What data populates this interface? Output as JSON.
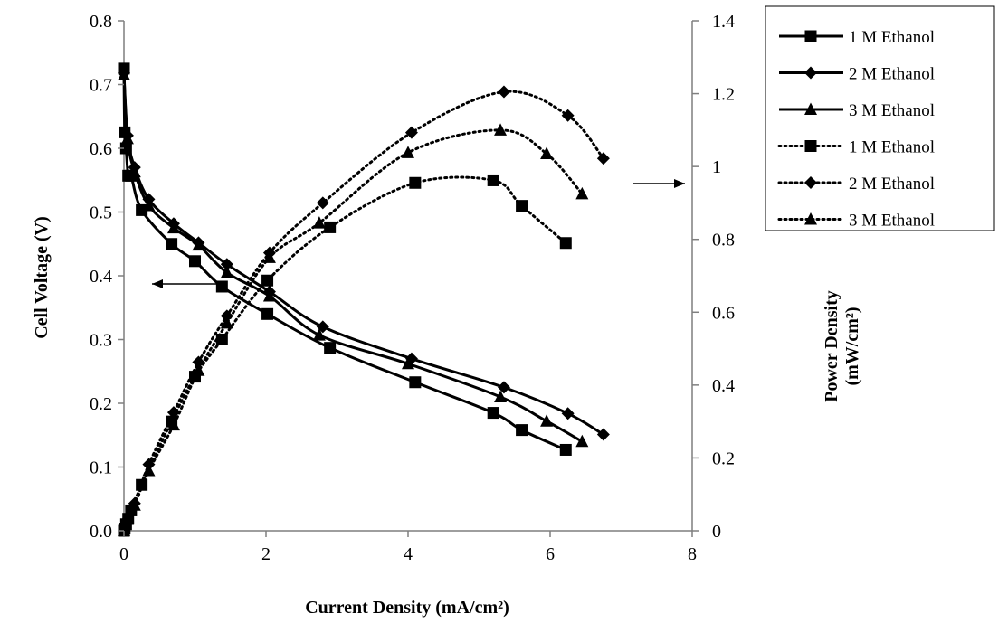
{
  "chart_data": {
    "type": "line",
    "xlabel": "Current Density (mA/cm²)",
    "ylabel": "Cell Voltage (V)",
    "y2label_line1": "Power Density",
    "y2label_line2": "(mW/cm²)",
    "xlim": [
      0,
      8
    ],
    "ylim": [
      0,
      0.8
    ],
    "y2lim": [
      0,
      1.4
    ],
    "xticks": [
      "0",
      "2",
      "4",
      "6",
      "8"
    ],
    "yticks": [
      "0.0",
      "0.1",
      "0.2",
      "0.3",
      "0.4",
      "0.5",
      "0.6",
      "0.7",
      "0.8"
    ],
    "y2ticks": [
      "0",
      "0.2",
      "0.4",
      "0.6",
      "0.8",
      "1",
      "1.2",
      "1.4"
    ],
    "grid": false,
    "legend_position": "top-right",
    "annotations": [
      {
        "label": "arrow-left",
        "points_to": "left-axis"
      },
      {
        "label": "arrow-right",
        "points_to": "right-axis"
      }
    ],
    "series": [
      {
        "name": "1 M Ethanol",
        "axis": "left",
        "style": "solid",
        "marker": "square",
        "x": [
          0.0,
          0.01,
          0.03,
          0.06,
          0.1,
          0.25,
          0.67,
          1.0,
          1.38,
          2.02,
          2.9,
          4.1,
          5.2,
          5.6,
          6.22
        ],
        "y": [
          0.725,
          0.625,
          0.6,
          0.557,
          0.557,
          0.503,
          0.45,
          0.423,
          0.383,
          0.34,
          0.287,
          0.233,
          0.185,
          0.158,
          0.127
        ]
      },
      {
        "name": "2 M Ethanol",
        "axis": "left",
        "style": "solid",
        "marker": "diamond",
        "x": [
          0.0,
          0.05,
          0.15,
          0.35,
          0.7,
          1.05,
          1.45,
          2.05,
          2.8,
          4.05,
          5.35,
          6.25,
          6.75
        ],
        "y": [
          0.718,
          0.62,
          0.57,
          0.52,
          0.482,
          0.452,
          0.418,
          0.375,
          0.32,
          0.27,
          0.225,
          0.184,
          0.151
        ]
      },
      {
        "name": "3 M Ethanol",
        "axis": "left",
        "style": "solid",
        "marker": "triangle",
        "x": [
          0.0,
          0.05,
          0.15,
          0.35,
          0.7,
          1.05,
          1.45,
          2.05,
          2.75,
          4.0,
          5.3,
          5.95,
          6.45
        ],
        "y": [
          0.715,
          0.615,
          0.563,
          0.51,
          0.475,
          0.448,
          0.405,
          0.368,
          0.307,
          0.262,
          0.21,
          0.172,
          0.14
        ]
      },
      {
        "name": "1 M Ethanol",
        "axis": "right",
        "style": "dotted",
        "marker": "square",
        "x": [
          0.0,
          0.01,
          0.03,
          0.06,
          0.1,
          0.25,
          0.67,
          1.0,
          1.38,
          2.02,
          2.9,
          4.1,
          5.2,
          5.6,
          6.22
        ],
        "y": [
          0.0,
          0.006,
          0.018,
          0.033,
          0.056,
          0.126,
          0.3,
          0.423,
          0.525,
          0.687,
          0.833,
          0.955,
          0.962,
          0.892,
          0.79
        ]
      },
      {
        "name": "2 M Ethanol",
        "axis": "right",
        "style": "dotted",
        "marker": "diamond",
        "x": [
          0.0,
          0.05,
          0.15,
          0.35,
          0.7,
          1.05,
          1.45,
          2.05,
          2.8,
          4.05,
          5.35,
          6.25,
          6.75
        ],
        "y": [
          0.0,
          0.031,
          0.075,
          0.182,
          0.325,
          0.463,
          0.59,
          0.763,
          0.9,
          1.093,
          1.205,
          1.14,
          1.022
        ]
      },
      {
        "name": "3 M Ethanol",
        "axis": "right",
        "style": "dotted",
        "marker": "triangle",
        "x": [
          0.0,
          0.05,
          0.15,
          0.35,
          0.7,
          1.05,
          1.45,
          2.05,
          2.75,
          4.0,
          5.3,
          5.95,
          6.45
        ],
        "y": [
          0.0,
          0.031,
          0.07,
          0.165,
          0.29,
          0.44,
          0.57,
          0.75,
          0.845,
          1.038,
          1.1,
          1.035,
          0.925
        ]
      }
    ]
  }
}
